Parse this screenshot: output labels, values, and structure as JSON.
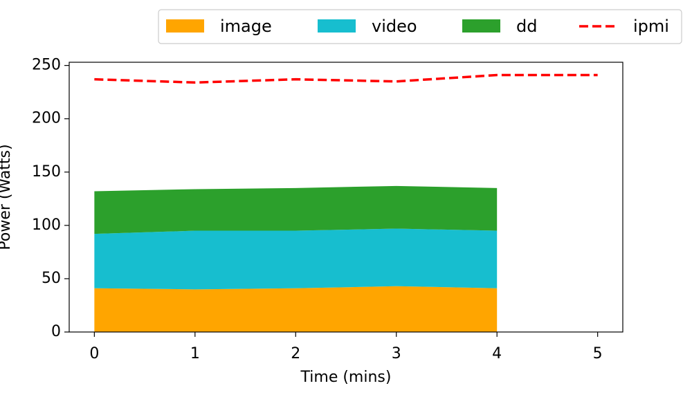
{
  "chart_data": {
    "type": "stacked-area-line",
    "xlabel": "Time (mins)",
    "ylabel": "Power (Watts)",
    "x": [
      0,
      1,
      2,
      3,
      4,
      5
    ],
    "series": [
      {
        "name": "image",
        "color": "#ffa500",
        "kind": "area",
        "values": [
          41,
          40,
          41,
          43,
          41,
          null
        ]
      },
      {
        "name": "video",
        "color": "#17becf",
        "kind": "area",
        "values": [
          51,
          55,
          54,
          54,
          54,
          null
        ]
      },
      {
        "name": "dd",
        "color": "#2ca02c",
        "kind": "area",
        "values": [
          40,
          39,
          40,
          40,
          40,
          null
        ]
      },
      {
        "name": "ipmi",
        "color": "#ff0000",
        "kind": "dashed-line",
        "values": [
          237,
          234,
          237,
          235,
          241,
          241
        ]
      }
    ],
    "xlim": [
      -0.25,
      5.25
    ],
    "ylim": [
      0,
      253
    ],
    "xticks": [
      0,
      1,
      2,
      3,
      4,
      5
    ],
    "yticks": [
      0,
      50,
      100,
      150,
      200,
      250
    ],
    "legend": "top-right"
  }
}
